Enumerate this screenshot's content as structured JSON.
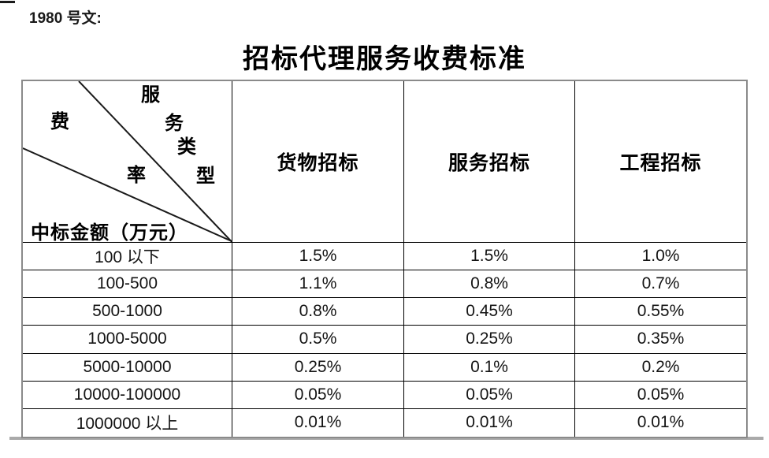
{
  "doc": {
    "ref": "1980 号文:",
    "title": "招标代理服务收费标准"
  },
  "table": {
    "corner": {
      "service_type_chars": [
        "服",
        "务",
        "类",
        "型"
      ],
      "rate_chars": [
        "费",
        "率"
      ],
      "amount_label": "中标金额（万元）"
    },
    "columns": [
      "货物招标",
      "服务招标",
      "工程招标"
    ],
    "rows": [
      {
        "range": "100 以下",
        "values": [
          "1.5%",
          "1.5%",
          "1.0%"
        ]
      },
      {
        "range": "100-500",
        "values": [
          "1.1%",
          "0.8%",
          "0.7%"
        ]
      },
      {
        "range": "500-1000",
        "values": [
          "0.8%",
          "0.45%",
          "0.55%"
        ]
      },
      {
        "range": "1000-5000",
        "values": [
          "0.5%",
          "0.25%",
          "0.35%"
        ]
      },
      {
        "range": "5000-10000",
        "values": [
          "0.25%",
          "0.1%",
          "0.2%"
        ]
      },
      {
        "range": "10000-100000",
        "values": [
          "0.05%",
          "0.05%",
          "0.05%"
        ]
      },
      {
        "range": "1000000 以上",
        "values": [
          "0.01%",
          "0.01%",
          "0.01%"
        ]
      }
    ],
    "colors": {
      "grid_line": "#000000",
      "outer_border": "#8a8a8a",
      "diagonal_line": "#1a1a1a",
      "text": "#141414"
    }
  }
}
